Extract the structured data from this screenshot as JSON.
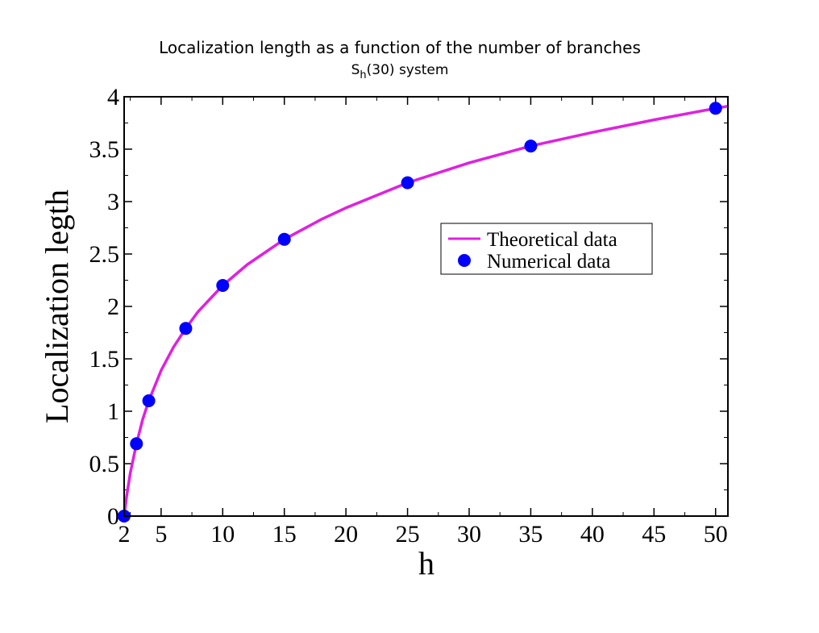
{
  "chart_data": {
    "type": "line",
    "title": "Localization length as a function of the number of branches",
    "subtitle": {
      "main": "S",
      "sub": "h",
      "rest": "(30) system"
    },
    "xlabel": "h",
    "ylabel": "Localization legth",
    "xlim": [
      2,
      51
    ],
    "ylim": [
      0,
      4
    ],
    "x_ticks": [
      2,
      5,
      10,
      15,
      20,
      25,
      30,
      35,
      40,
      45,
      50
    ],
    "y_ticks": [
      0,
      0.5,
      1,
      1.5,
      2,
      2.5,
      3,
      3.5,
      4
    ],
    "x_tick_labels": [
      "2",
      "5",
      "10",
      "15",
      "20",
      "25",
      "30",
      "35",
      "40",
      "45",
      "50"
    ],
    "y_tick_labels": [
      "0",
      "0.5",
      "1",
      "1.5",
      "2",
      "2.5",
      "3",
      "3.5",
      "4"
    ],
    "grid": false,
    "legend_position": "center-right",
    "series": [
      {
        "name": "Theoretical data",
        "kind": "line",
        "color": "#e020e0",
        "x": [
          2,
          2.2,
          2.5,
          3,
          3.5,
          4,
          5,
          6,
          7,
          8,
          10,
          12,
          15,
          18,
          20,
          25,
          30,
          35,
          40,
          45,
          50,
          51
        ],
        "y": [
          0,
          0.19,
          0.41,
          0.69,
          0.92,
          1.1,
          1.39,
          1.61,
          1.79,
          1.95,
          2.2,
          2.4,
          2.64,
          2.83,
          2.94,
          3.18,
          3.37,
          3.53,
          3.66,
          3.78,
          3.89,
          3.91
        ]
      },
      {
        "name": "Numerical data",
        "kind": "scatter",
        "color": "#0000ff",
        "x": [
          2,
          3,
          4,
          7,
          10,
          15,
          25,
          35,
          50
        ],
        "y": [
          0,
          0.69,
          1.1,
          1.79,
          2.2,
          2.64,
          3.18,
          3.53,
          3.89
        ]
      }
    ]
  }
}
